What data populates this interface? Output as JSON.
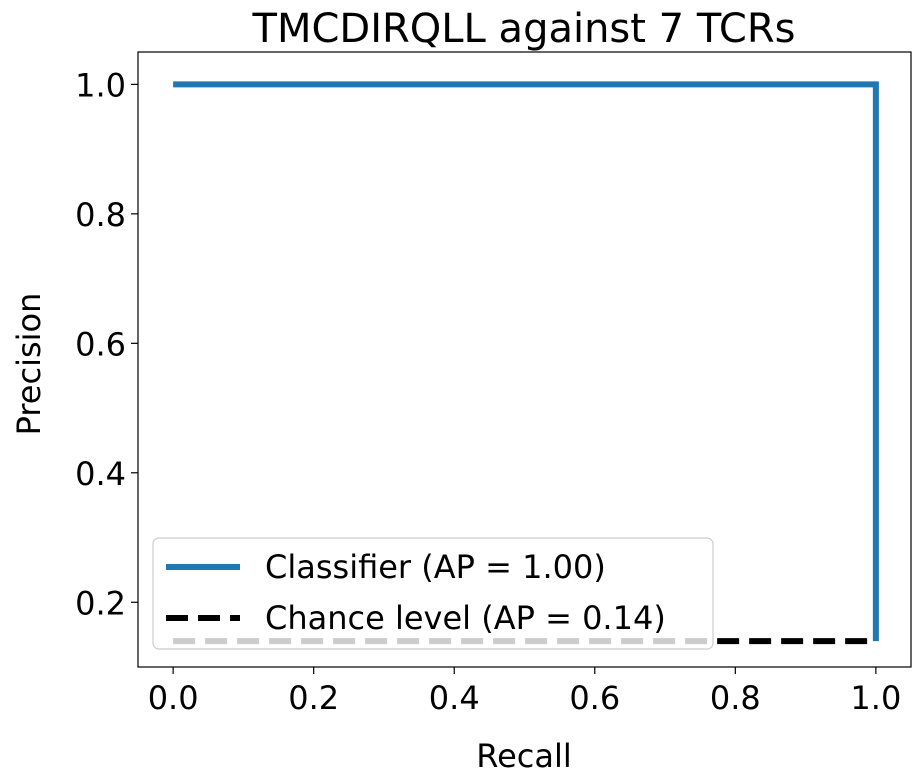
{
  "chart_data": {
    "type": "line",
    "title": "TMCDIRQLL against 7 TCRs",
    "xlabel": "Recall",
    "ylabel": "Precision",
    "xlim": [
      -0.05,
      1.05
    ],
    "ylim": [
      0.1,
      1.05
    ],
    "xticks": [
      0.0,
      0.2,
      0.4,
      0.6,
      0.8,
      1.0
    ],
    "xtick_labels": [
      "0.0",
      "0.2",
      "0.4",
      "0.6",
      "0.8",
      "1.0"
    ],
    "yticks": [
      0.2,
      0.4,
      0.6,
      0.8,
      1.0
    ],
    "ytick_labels": [
      "0.2",
      "0.4",
      "0.6",
      "0.8",
      "1.0"
    ],
    "grid": false,
    "legend_placement": "lower-left",
    "series": [
      {
        "name": "Classifier (AP = 1.00)",
        "color": "#1f77b4",
        "style": "solid",
        "x": [
          0.0,
          1.0,
          1.0
        ],
        "y": [
          1.0,
          1.0,
          0.14
        ]
      },
      {
        "name": "Chance level (AP = 0.14)",
        "color": "#000000",
        "style": "dashed",
        "x": [
          0.0,
          1.0
        ],
        "y": [
          0.14,
          0.14
        ]
      }
    ]
  }
}
